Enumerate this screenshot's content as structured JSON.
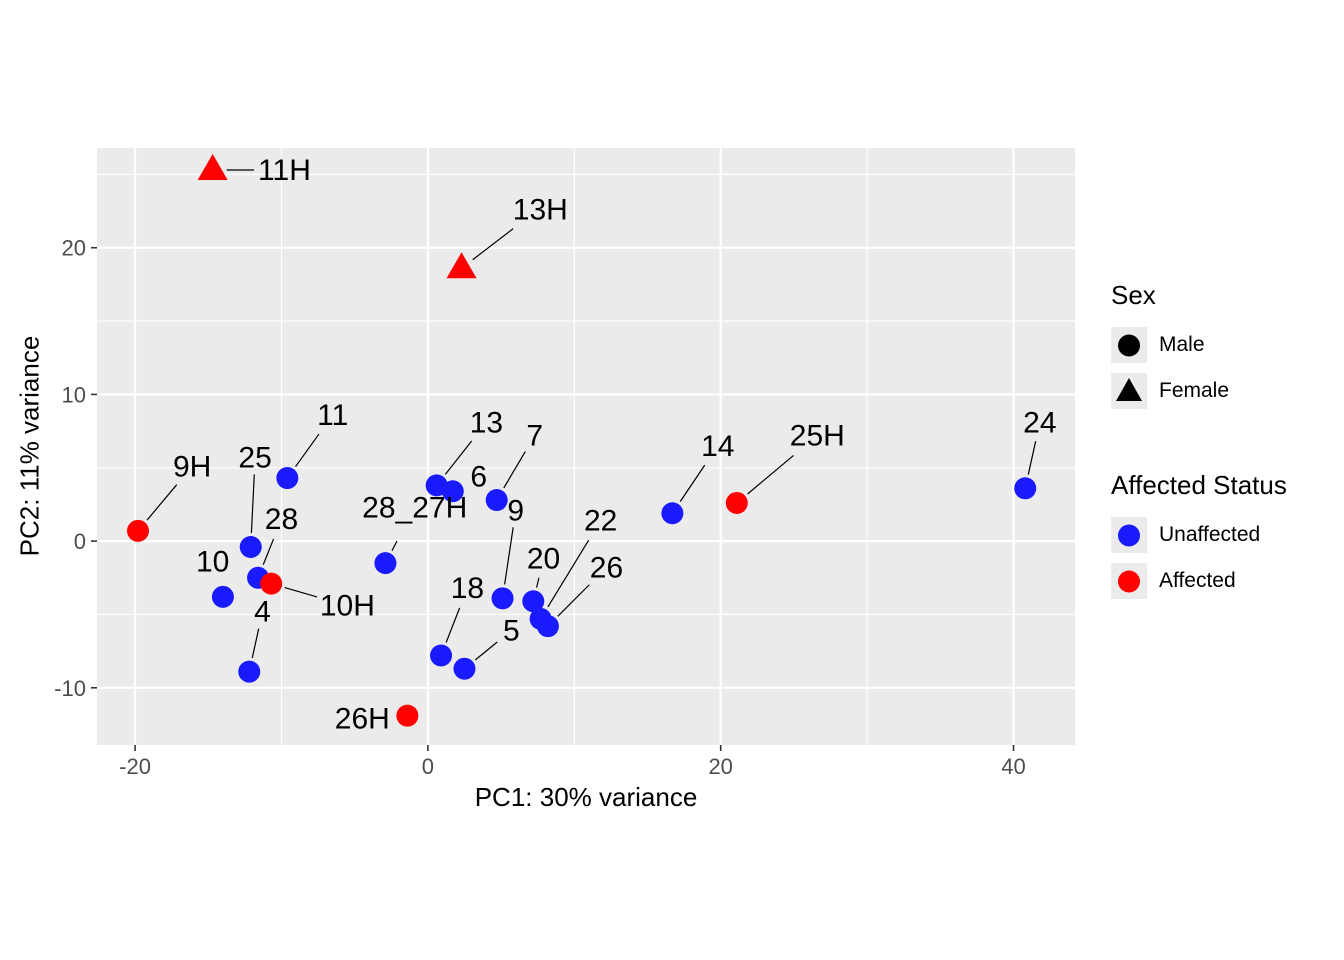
{
  "figure": {
    "xlabel": "PC1: 30% variance",
    "ylabel": "PC2: 11% variance"
  },
  "legend": {
    "sex": {
      "title": "Sex",
      "items": [
        {
          "label": "Male",
          "shape": "circle",
          "color": "#000000"
        },
        {
          "label": "Female",
          "shape": "triangle",
          "color": "#000000"
        }
      ]
    },
    "affected": {
      "title": "Affected Status",
      "items": [
        {
          "label": "Unaffected",
          "shape": "circle",
          "color": "#1A1AFF"
        },
        {
          "label": "Affected",
          "shape": "circle",
          "color": "#FF0000"
        }
      ]
    }
  },
  "chart_data": {
    "type": "scatter",
    "title": "",
    "xlabel": "PC1: 30% variance",
    "ylabel": "PC2: 11% variance",
    "xlim": [
      -22.6,
      44.2
    ],
    "ylim": [
      -13.9,
      26.8
    ],
    "x_major_ticks": [
      -20,
      0,
      20,
      40
    ],
    "y_major_ticks": [
      -10,
      0,
      10,
      20
    ],
    "x_minor_ticks": [
      -10,
      10,
      30
    ],
    "y_minor_ticks": [
      -5,
      5,
      15,
      25
    ],
    "panel_background": "#EBEBEB",
    "grid_color": "#FFFFFF",
    "tick_color": "#333333",
    "tick_label_color": "#4D4D4D",
    "status_colors": {
      "Unaffected": "#1A1AFF",
      "Affected": "#FF0000"
    },
    "sex_shapes": {
      "Male": "circle",
      "Female": "triangle"
    },
    "legend_position": "right",
    "points": [
      {
        "label": "11H",
        "x": -14.7,
        "y": 25.3,
        "sex": "Female",
        "status": "Affected",
        "label_x": -11.6,
        "label_y": 25.3,
        "anchor": "start",
        "leader": true
      },
      {
        "label": "13H",
        "x": 2.3,
        "y": 18.6,
        "sex": "Female",
        "status": "Affected",
        "label_x": 5.8,
        "label_y": 22.6,
        "anchor": "start",
        "leader": true
      },
      {
        "label": "9H",
        "x": -19.8,
        "y": 0.7,
        "sex": "Male",
        "status": "Affected",
        "label_x": -16.1,
        "label_y": 5.1,
        "anchor": "middle",
        "leader": true
      },
      {
        "label": "25",
        "x": -12.1,
        "y": -0.4,
        "sex": "Male",
        "status": "Unaffected",
        "label_x": -11.8,
        "label_y": 5.7,
        "anchor": "middle",
        "leader": true
      },
      {
        "label": "11",
        "x": -9.6,
        "y": 4.3,
        "sex": "Male",
        "status": "Unaffected",
        "label_x": -6.5,
        "label_y": 8.6,
        "anchor": "middle",
        "leader": true
      },
      {
        "label": "10",
        "x": -14.0,
        "y": -3.8,
        "sex": "Male",
        "status": "Unaffected",
        "label_x": -14.7,
        "label_y": -1.4,
        "anchor": "middle",
        "leader": false
      },
      {
        "label": "28",
        "x": -11.6,
        "y": -2.5,
        "sex": "Male",
        "status": "Unaffected",
        "label_x": -10.0,
        "label_y": 1.5,
        "anchor": "middle",
        "leader": true
      },
      {
        "label": "10H",
        "x": -10.7,
        "y": -2.9,
        "sex": "Male",
        "status": "Affected",
        "label_x": -5.5,
        "label_y": -4.4,
        "anchor": "middle",
        "leader": true
      },
      {
        "label": "4",
        "x": -12.2,
        "y": -8.9,
        "sex": "Male",
        "status": "Unaffected",
        "label_x": -11.3,
        "label_y": -4.8,
        "anchor": "middle",
        "leader": true
      },
      {
        "label": "28_27H",
        "x": -2.9,
        "y": -1.5,
        "sex": "Male",
        "status": "Unaffected",
        "label_x": -0.9,
        "label_y": 2.3,
        "anchor": "middle",
        "leader": true
      },
      {
        "label": "13",
        "x": 0.6,
        "y": 3.8,
        "sex": "Male",
        "status": "Unaffected",
        "label_x": 4.0,
        "label_y": 8.1,
        "anchor": "middle",
        "leader": true
      },
      {
        "label": "6",
        "x": 1.7,
        "y": 3.4,
        "sex": "Male",
        "status": "Unaffected",
        "label_x": 2.9,
        "label_y": 4.4,
        "anchor": "start",
        "leader": false
      },
      {
        "label": "7",
        "x": 4.7,
        "y": 2.8,
        "sex": "Male",
        "status": "Unaffected",
        "label_x": 7.3,
        "label_y": 7.2,
        "anchor": "middle",
        "leader": true
      },
      {
        "label": "9",
        "x": 5.1,
        "y": -3.9,
        "sex": "Male",
        "status": "Unaffected",
        "label_x": 6.0,
        "label_y": 2.1,
        "anchor": "middle",
        "leader": true
      },
      {
        "label": "20",
        "x": 7.2,
        "y": -4.1,
        "sex": "Male",
        "status": "Unaffected",
        "label_x": 7.9,
        "label_y": -1.2,
        "anchor": "middle",
        "leader": true
      },
      {
        "label": "22",
        "x": 7.7,
        "y": -5.3,
        "sex": "Male",
        "status": "Unaffected",
        "label_x": 11.8,
        "label_y": 1.4,
        "anchor": "middle",
        "leader": true
      },
      {
        "label": "26",
        "x": 8.2,
        "y": -5.8,
        "sex": "Male",
        "status": "Unaffected",
        "label_x": 12.2,
        "label_y": -1.8,
        "anchor": "middle",
        "leader": true
      },
      {
        "label": "18",
        "x": 0.9,
        "y": -7.8,
        "sex": "Male",
        "status": "Unaffected",
        "label_x": 2.7,
        "label_y": -3.2,
        "anchor": "middle",
        "leader": true
      },
      {
        "label": "5",
        "x": 2.5,
        "y": -8.7,
        "sex": "Male",
        "status": "Unaffected",
        "label_x": 5.7,
        "label_y": -6.1,
        "anchor": "middle",
        "leader": true
      },
      {
        "label": "26H",
        "x": -1.4,
        "y": -11.9,
        "sex": "Male",
        "status": "Affected",
        "label_x": -2.6,
        "label_y": -12.1,
        "anchor": "end",
        "leader": false
      },
      {
        "label": "14",
        "x": 16.7,
        "y": 1.9,
        "sex": "Male",
        "status": "Unaffected",
        "label_x": 19.8,
        "label_y": 6.5,
        "anchor": "middle",
        "leader": true
      },
      {
        "label": "25H",
        "x": 21.1,
        "y": 2.6,
        "sex": "Male",
        "status": "Affected",
        "label_x": 26.6,
        "label_y": 7.2,
        "anchor": "middle",
        "leader": true
      },
      {
        "label": "24",
        "x": 40.8,
        "y": 3.6,
        "sex": "Male",
        "status": "Unaffected",
        "label_x": 41.8,
        "label_y": 8.1,
        "anchor": "middle",
        "leader": true
      }
    ]
  }
}
